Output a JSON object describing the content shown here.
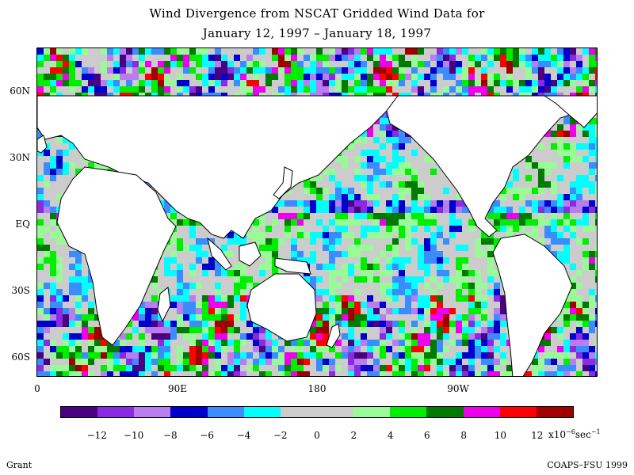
{
  "title": {
    "line1": "Wind Divergence from NSCAT Gridded Wind Data for",
    "line2": "January 12, 1997 – January 18, 1997"
  },
  "map": {
    "lon_range": [
      0,
      360
    ],
    "lat_range": [
      -75,
      75
    ],
    "lat_labels": [
      "60N",
      "30N",
      "EQ",
      "30S",
      "60S"
    ],
    "lat_values": [
      60,
      30,
      0,
      -30,
      -60
    ],
    "lon_labels": [
      "0",
      "90E",
      "180",
      "90W"
    ],
    "lon_values": [
      0,
      90,
      180,
      270
    ]
  },
  "colorbar": {
    "colors": [
      "#4b0082",
      "#8a2be2",
      "#b87ef0",
      "#0000cd",
      "#3a8cff",
      "#00ffff",
      "#cccccc",
      "#cccccc",
      "#98fb98",
      "#00ee00",
      "#007a00",
      "#ee00ee",
      "#ff0000",
      "#a00000"
    ],
    "ticks": [
      "−12",
      "−10",
      "−8",
      "−6",
      "−4",
      "−2",
      "0",
      "2",
      "4",
      "6",
      "8",
      "10",
      "12"
    ],
    "units_prefix": "x10",
    "units_exp1": "−6",
    "units_mid": "sec",
    "units_exp2": "−1"
  },
  "footer": {
    "left": "Grant",
    "right": "COAPS–FSU 1999"
  }
}
